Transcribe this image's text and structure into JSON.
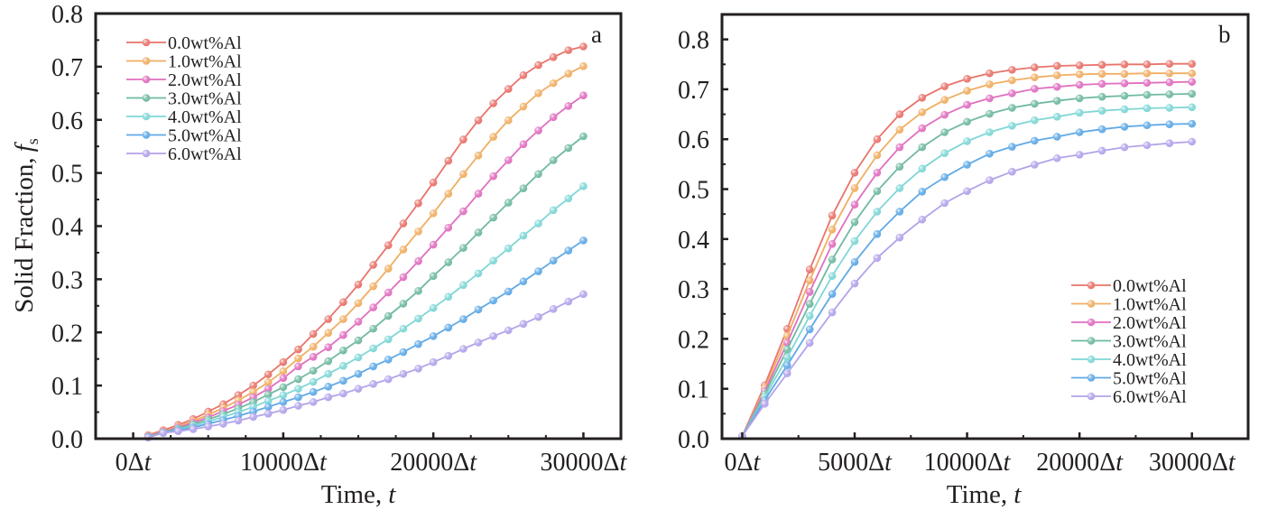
{
  "chart_data": [
    {
      "panel_label": "a",
      "type": "line",
      "xlabel": "Time,",
      "xlabel_var": "t",
      "ylabel": "Solid Fraction,",
      "ylabel_var": "f",
      "ylabel_sub": "s",
      "xlim": [
        -2500,
        32500
      ],
      "ylim": [
        0.0,
        0.8
      ],
      "grid": false,
      "legend_position": "top-left",
      "yticks": [
        {
          "value": 0.0,
          "label": "0.0"
        },
        {
          "value": 0.1,
          "label": "0.1"
        },
        {
          "value": 0.2,
          "label": "0.2"
        },
        {
          "value": 0.3,
          "label": "0.3"
        },
        {
          "value": 0.4,
          "label": "0.4"
        },
        {
          "value": 0.5,
          "label": "0.5"
        },
        {
          "value": 0.6,
          "label": "0.6"
        },
        {
          "value": 0.7,
          "label": "0.7"
        },
        {
          "value": 0.8,
          "label": "0.8"
        }
      ],
      "xticks": [
        {
          "value": 0,
          "label": "0Δ",
          "var": "t"
        },
        {
          "value": 10000,
          "label": "10000Δ",
          "var": "t"
        },
        {
          "value": 20000,
          "label": "20000Δ",
          "var": "t"
        },
        {
          "value": 30000,
          "label": "30000Δ",
          "var": "t"
        }
      ],
      "x": [
        1000,
        2000,
        3000,
        4000,
        5000,
        6000,
        7000,
        8000,
        9000,
        10000,
        11000,
        12000,
        13000,
        14000,
        15000,
        16000,
        17000,
        18000,
        19000,
        20000,
        21000,
        22000,
        23000,
        24000,
        25000,
        26000,
        27000,
        28000,
        29000,
        30000
      ],
      "series": [
        {
          "name": "0.0wt%Al",
          "color": "#e8736b",
          "values": [
            0.007,
            0.016,
            0.026,
            0.037,
            0.051,
            0.065,
            0.082,
            0.1,
            0.121,
            0.144,
            0.168,
            0.197,
            0.225,
            0.257,
            0.29,
            0.327,
            0.364,
            0.405,
            0.443,
            0.482,
            0.523,
            0.563,
            0.599,
            0.631,
            0.658,
            0.684,
            0.703,
            0.718,
            0.731,
            0.738
          ]
        },
        {
          "name": "1.0wt%Al",
          "color": "#f0ae62",
          "values": [
            0.006,
            0.014,
            0.023,
            0.033,
            0.045,
            0.058,
            0.072,
            0.088,
            0.106,
            0.127,
            0.151,
            0.173,
            0.199,
            0.225,
            0.255,
            0.287,
            0.32,
            0.356,
            0.39,
            0.424,
            0.461,
            0.498,
            0.533,
            0.568,
            0.599,
            0.625,
            0.65,
            0.669,
            0.687,
            0.701
          ]
        },
        {
          "name": "2.0wt%Al",
          "color": "#e06fbf",
          "values": [
            0.005,
            0.013,
            0.021,
            0.03,
            0.04,
            0.052,
            0.064,
            0.078,
            0.094,
            0.114,
            0.136,
            0.154,
            0.172,
            0.195,
            0.22,
            0.247,
            0.275,
            0.304,
            0.334,
            0.365,
            0.397,
            0.428,
            0.461,
            0.494,
            0.524,
            0.554,
            0.58,
            0.605,
            0.626,
            0.646
          ]
        },
        {
          "name": "3.0wt%Al",
          "color": "#6fb9a2",
          "values": [
            0.004,
            0.012,
            0.019,
            0.027,
            0.036,
            0.046,
            0.057,
            0.069,
            0.083,
            0.097,
            0.112,
            0.128,
            0.146,
            0.166,
            0.185,
            0.207,
            0.231,
            0.254,
            0.278,
            0.306,
            0.332,
            0.359,
            0.388,
            0.416,
            0.444,
            0.471,
            0.498,
            0.524,
            0.547,
            0.569
          ]
        },
        {
          "name": "4.0wt%Al",
          "color": "#7fd6d6",
          "values": [
            0.003,
            0.011,
            0.017,
            0.024,
            0.032,
            0.041,
            0.05,
            0.06,
            0.071,
            0.082,
            0.094,
            0.107,
            0.122,
            0.137,
            0.153,
            0.17,
            0.187,
            0.207,
            0.226,
            0.246,
            0.267,
            0.289,
            0.311,
            0.335,
            0.358,
            0.382,
            0.405,
            0.43,
            0.452,
            0.475
          ]
        },
        {
          "name": "5.0wt%Al",
          "color": "#5fa9e6",
          "values": [
            0.003,
            0.011,
            0.016,
            0.021,
            0.028,
            0.035,
            0.043,
            0.051,
            0.06,
            0.069,
            0.078,
            0.088,
            0.098,
            0.109,
            0.122,
            0.136,
            0.149,
            0.163,
            0.178,
            0.193,
            0.209,
            0.225,
            0.243,
            0.26,
            0.277,
            0.296,
            0.315,
            0.335,
            0.354,
            0.373
          ]
        },
        {
          "name": "6.0wt%Al",
          "color": "#b3a3ea",
          "values": [
            0.002,
            0.011,
            0.014,
            0.018,
            0.023,
            0.028,
            0.034,
            0.041,
            0.047,
            0.054,
            0.062,
            0.069,
            0.078,
            0.085,
            0.094,
            0.103,
            0.112,
            0.122,
            0.132,
            0.144,
            0.156,
            0.169,
            0.181,
            0.193,
            0.204,
            0.216,
            0.229,
            0.244,
            0.258,
            0.272
          ]
        }
      ]
    },
    {
      "panel_label": "b",
      "type": "line",
      "xlabel": "Time,",
      "xlabel_var": "t",
      "ylabel": "",
      "xlim": [
        -0.9,
        22.5
      ],
      "ylim": [
        0.0,
        0.85
      ],
      "grid": false,
      "legend_position": "bottom-right",
      "x_note": "x values are sample indices; tick labels as printed on the axis",
      "yticks": [
        {
          "value": 0.0,
          "label": "0.0"
        },
        {
          "value": 0.1,
          "label": "0.1"
        },
        {
          "value": 0.2,
          "label": "0.2"
        },
        {
          "value": 0.3,
          "label": "0.3"
        },
        {
          "value": 0.4,
          "label": "0.4"
        },
        {
          "value": 0.5,
          "label": "0.5"
        },
        {
          "value": 0.6,
          "label": "0.6"
        },
        {
          "value": 0.7,
          "label": "0.7"
        },
        {
          "value": 0.8,
          "label": "0.8"
        }
      ],
      "xticks": [
        {
          "value": 0,
          "label": "0Δ",
          "var": "t"
        },
        {
          "value": 5,
          "label": "5000Δ",
          "var": "t"
        },
        {
          "value": 10,
          "label": "10000Δ",
          "var": "t"
        },
        {
          "value": 15,
          "label": "20000Δ",
          "var": "t"
        },
        {
          "value": 20,
          "label": "30000Δ",
          "var": "t"
        }
      ],
      "x": [
        0,
        1,
        2,
        3,
        4,
        5,
        6,
        7,
        8,
        9,
        10,
        11,
        12,
        13,
        14,
        15,
        16,
        17,
        18,
        19,
        20
      ],
      "series": [
        {
          "name": "0.0wt%Al",
          "color": "#e8736b",
          "values": [
            0.005,
            0.107,
            0.22,
            0.339,
            0.447,
            0.533,
            0.6,
            0.65,
            0.683,
            0.706,
            0.721,
            0.732,
            0.739,
            0.744,
            0.747,
            0.748,
            0.749,
            0.75,
            0.75,
            0.751,
            0.751
          ]
        },
        {
          "name": "1.0wt%Al",
          "color": "#f0ae62",
          "values": [
            0.005,
            0.101,
            0.206,
            0.317,
            0.419,
            0.502,
            0.568,
            0.619,
            0.654,
            0.679,
            0.697,
            0.71,
            0.718,
            0.724,
            0.728,
            0.73,
            0.731,
            0.731,
            0.732,
            0.732,
            0.732
          ]
        },
        {
          "name": "2.0wt%Al",
          "color": "#e06fbf",
          "values": [
            0.005,
            0.095,
            0.192,
            0.294,
            0.39,
            0.469,
            0.533,
            0.584,
            0.622,
            0.649,
            0.669,
            0.682,
            0.692,
            0.701,
            0.705,
            0.709,
            0.711,
            0.712,
            0.713,
            0.714,
            0.715
          ]
        },
        {
          "name": "3.0wt%Al",
          "color": "#6fb9a2",
          "values": [
            0.005,
            0.089,
            0.179,
            0.27,
            0.359,
            0.434,
            0.496,
            0.545,
            0.584,
            0.614,
            0.635,
            0.651,
            0.663,
            0.671,
            0.677,
            0.682,
            0.685,
            0.687,
            0.689,
            0.69,
            0.691
          ]
        },
        {
          "name": "4.0wt%Al",
          "color": "#7fd6d6",
          "values": [
            0.005,
            0.083,
            0.163,
            0.246,
            0.326,
            0.396,
            0.455,
            0.502,
            0.541,
            0.572,
            0.596,
            0.614,
            0.627,
            0.638,
            0.645,
            0.653,
            0.657,
            0.66,
            0.662,
            0.663,
            0.664
          ]
        },
        {
          "name": "5.0wt%Al",
          "color": "#5fa9e6",
          "values": [
            0.005,
            0.077,
            0.147,
            0.219,
            0.29,
            0.354,
            0.41,
            0.455,
            0.495,
            0.524,
            0.549,
            0.571,
            0.585,
            0.597,
            0.605,
            0.614,
            0.62,
            0.625,
            0.628,
            0.63,
            0.631
          ]
        },
        {
          "name": "6.0wt%Al",
          "color": "#b3a3ea",
          "values": [
            0.005,
            0.07,
            0.131,
            0.192,
            0.253,
            0.311,
            0.362,
            0.403,
            0.439,
            0.472,
            0.496,
            0.518,
            0.535,
            0.549,
            0.562,
            0.569,
            0.577,
            0.584,
            0.588,
            0.592,
            0.595
          ]
        }
      ]
    }
  ]
}
